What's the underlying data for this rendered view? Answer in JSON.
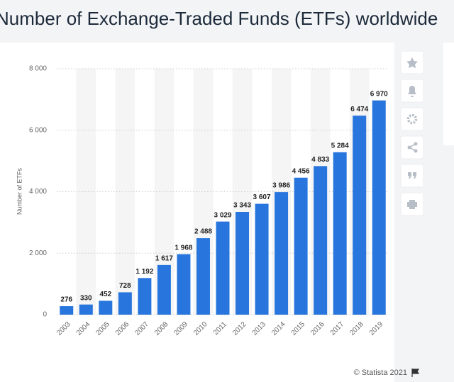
{
  "chart_data": {
    "type": "bar",
    "title": "Number of Exchange-Traded Funds (ETFs) worldwide",
    "y_label": "Number of ETFs",
    "credit": "© Statista 2021",
    "categories": [
      "2003",
      "2004",
      "2005",
      "2006",
      "2007",
      "2008",
      "2009",
      "2010",
      "2011",
      "2012",
      "2013",
      "2014",
      "2015",
      "2016",
      "2017",
      "2018",
      "2019"
    ],
    "values": [
      276,
      330,
      452,
      728,
      1192,
      1617,
      1968,
      2488,
      3029,
      3343,
      3607,
      3986,
      4456,
      4833,
      5284,
      6474,
      6970
    ],
    "value_labels": [
      "276",
      "330",
      "452",
      "728",
      "1 192",
      "1 617",
      "1 968",
      "2 488",
      "3 029",
      "3 343",
      "3 607",
      "3 986",
      "4 456",
      "4 833",
      "5 284",
      "6 474",
      "6 970"
    ],
    "color": "#2876dd",
    "ylim": [
      0,
      8000
    ],
    "yticks": [
      {
        "value": 0,
        "label": "0"
      },
      {
        "value": 2000,
        "label": "2 000"
      },
      {
        "value": 4000,
        "label": "4 000"
      },
      {
        "value": 6000,
        "label": "6 000"
      },
      {
        "value": 8000,
        "label": "8 000"
      }
    ],
    "grid": true
  }
}
